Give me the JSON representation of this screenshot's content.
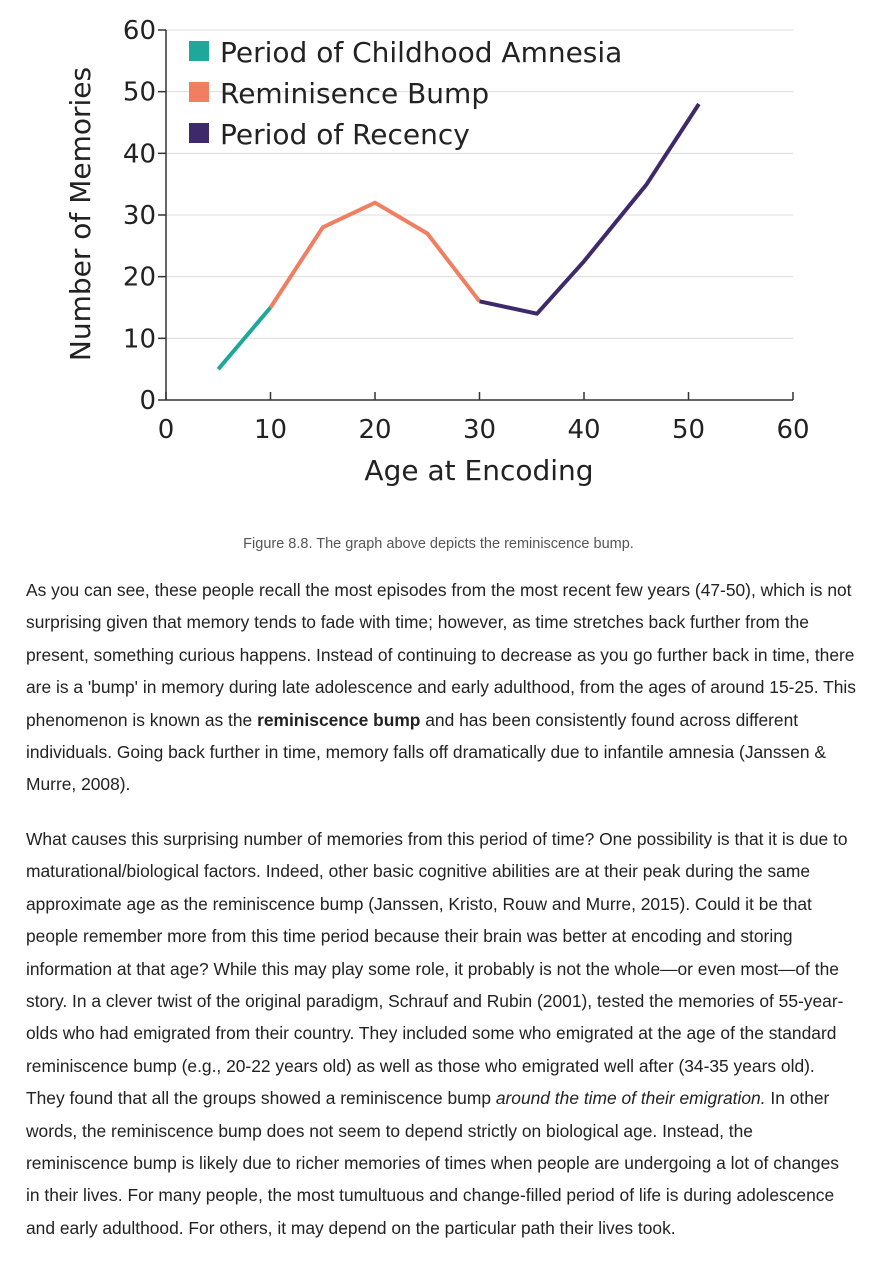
{
  "chart_data": {
    "type": "line",
    "xlabel": "Age at Encoding",
    "ylabel": "Number of Memories",
    "xlim": [
      0,
      60
    ],
    "ylim": [
      0,
      60
    ],
    "xticks": [
      0,
      10,
      20,
      30,
      40,
      50,
      60
    ],
    "yticks": [
      0,
      10,
      20,
      30,
      40,
      50,
      60
    ],
    "grid": "horizontal",
    "legend": "top-left",
    "series": [
      {
        "name": "Period of Childhood Amnesia",
        "color": "#1fa89a",
        "points": [
          [
            5,
            5
          ],
          [
            10,
            15
          ]
        ]
      },
      {
        "name": "Reminisence Bump",
        "color": "#f07f62",
        "points": [
          [
            10,
            15
          ],
          [
            15,
            28
          ],
          [
            20,
            32
          ],
          [
            25,
            27
          ],
          [
            30,
            16
          ]
        ]
      },
      {
        "name": "Period of Recency",
        "color": "#3e2a6b",
        "points": [
          [
            30,
            16
          ],
          [
            35.5,
            14
          ],
          [
            40,
            22.5
          ],
          [
            46,
            35
          ],
          [
            51,
            48
          ]
        ]
      }
    ]
  },
  "caption": "Figure 8.8. The graph above depicts the reminiscence bump.",
  "para1": {
    "before": "As you can see, these people recall the most episodes from the most recent few years (47-50), which is not surprising given that memory tends to fade with time; however, as time stretches back further from the present, something curious happens. Instead of continuing to decrease as you go further back in time, there are is a 'bump' in memory during late adolescence and early adulthood, from the ages of around 15-25. This phenomenon is known as the ",
    "bold": "reminiscence bump",
    "after": " and has been consistently found across different individuals. Going back further in time, memory falls off dramatically due to infantile amnesia (Janssen & Murre, 2008)."
  },
  "para2": {
    "before": "What causes this surprising number of memories from this period of time? One possibility is that it is due to maturational/biological factors. Indeed, other basic cognitive abilities are at their peak during the same approximate age as the reminiscence bump (Janssen, Kristo, Rouw and Murre, 2015). Could it be that people remember more from this time period because their brain was better at encoding and storing information at that age? While this may play some role, it probably is not the whole—or even most—of the story. In a clever twist of the original paradigm, Schrauf and Rubin (2001), tested the memories of 55-year-olds who had emigrated from their country. They included some who emigrated at the age of the standard reminiscence bump (e.g., 20-22 years old) as well as those who emigrated well after (34-35 years old). They found that all the groups showed a reminiscence bump ",
    "italic": "around the time of their emigration.",
    "after": " In other words, the reminiscence bump does not seem to depend strictly on biological age. Instead, the reminiscence bump is likely due to richer memories of times when people are undergoing a lot of changes in their lives. For many people, the most tumultuous and change-filled period of life is during adolescence and early adulthood. For others, it may depend on the particular path their lives took."
  }
}
